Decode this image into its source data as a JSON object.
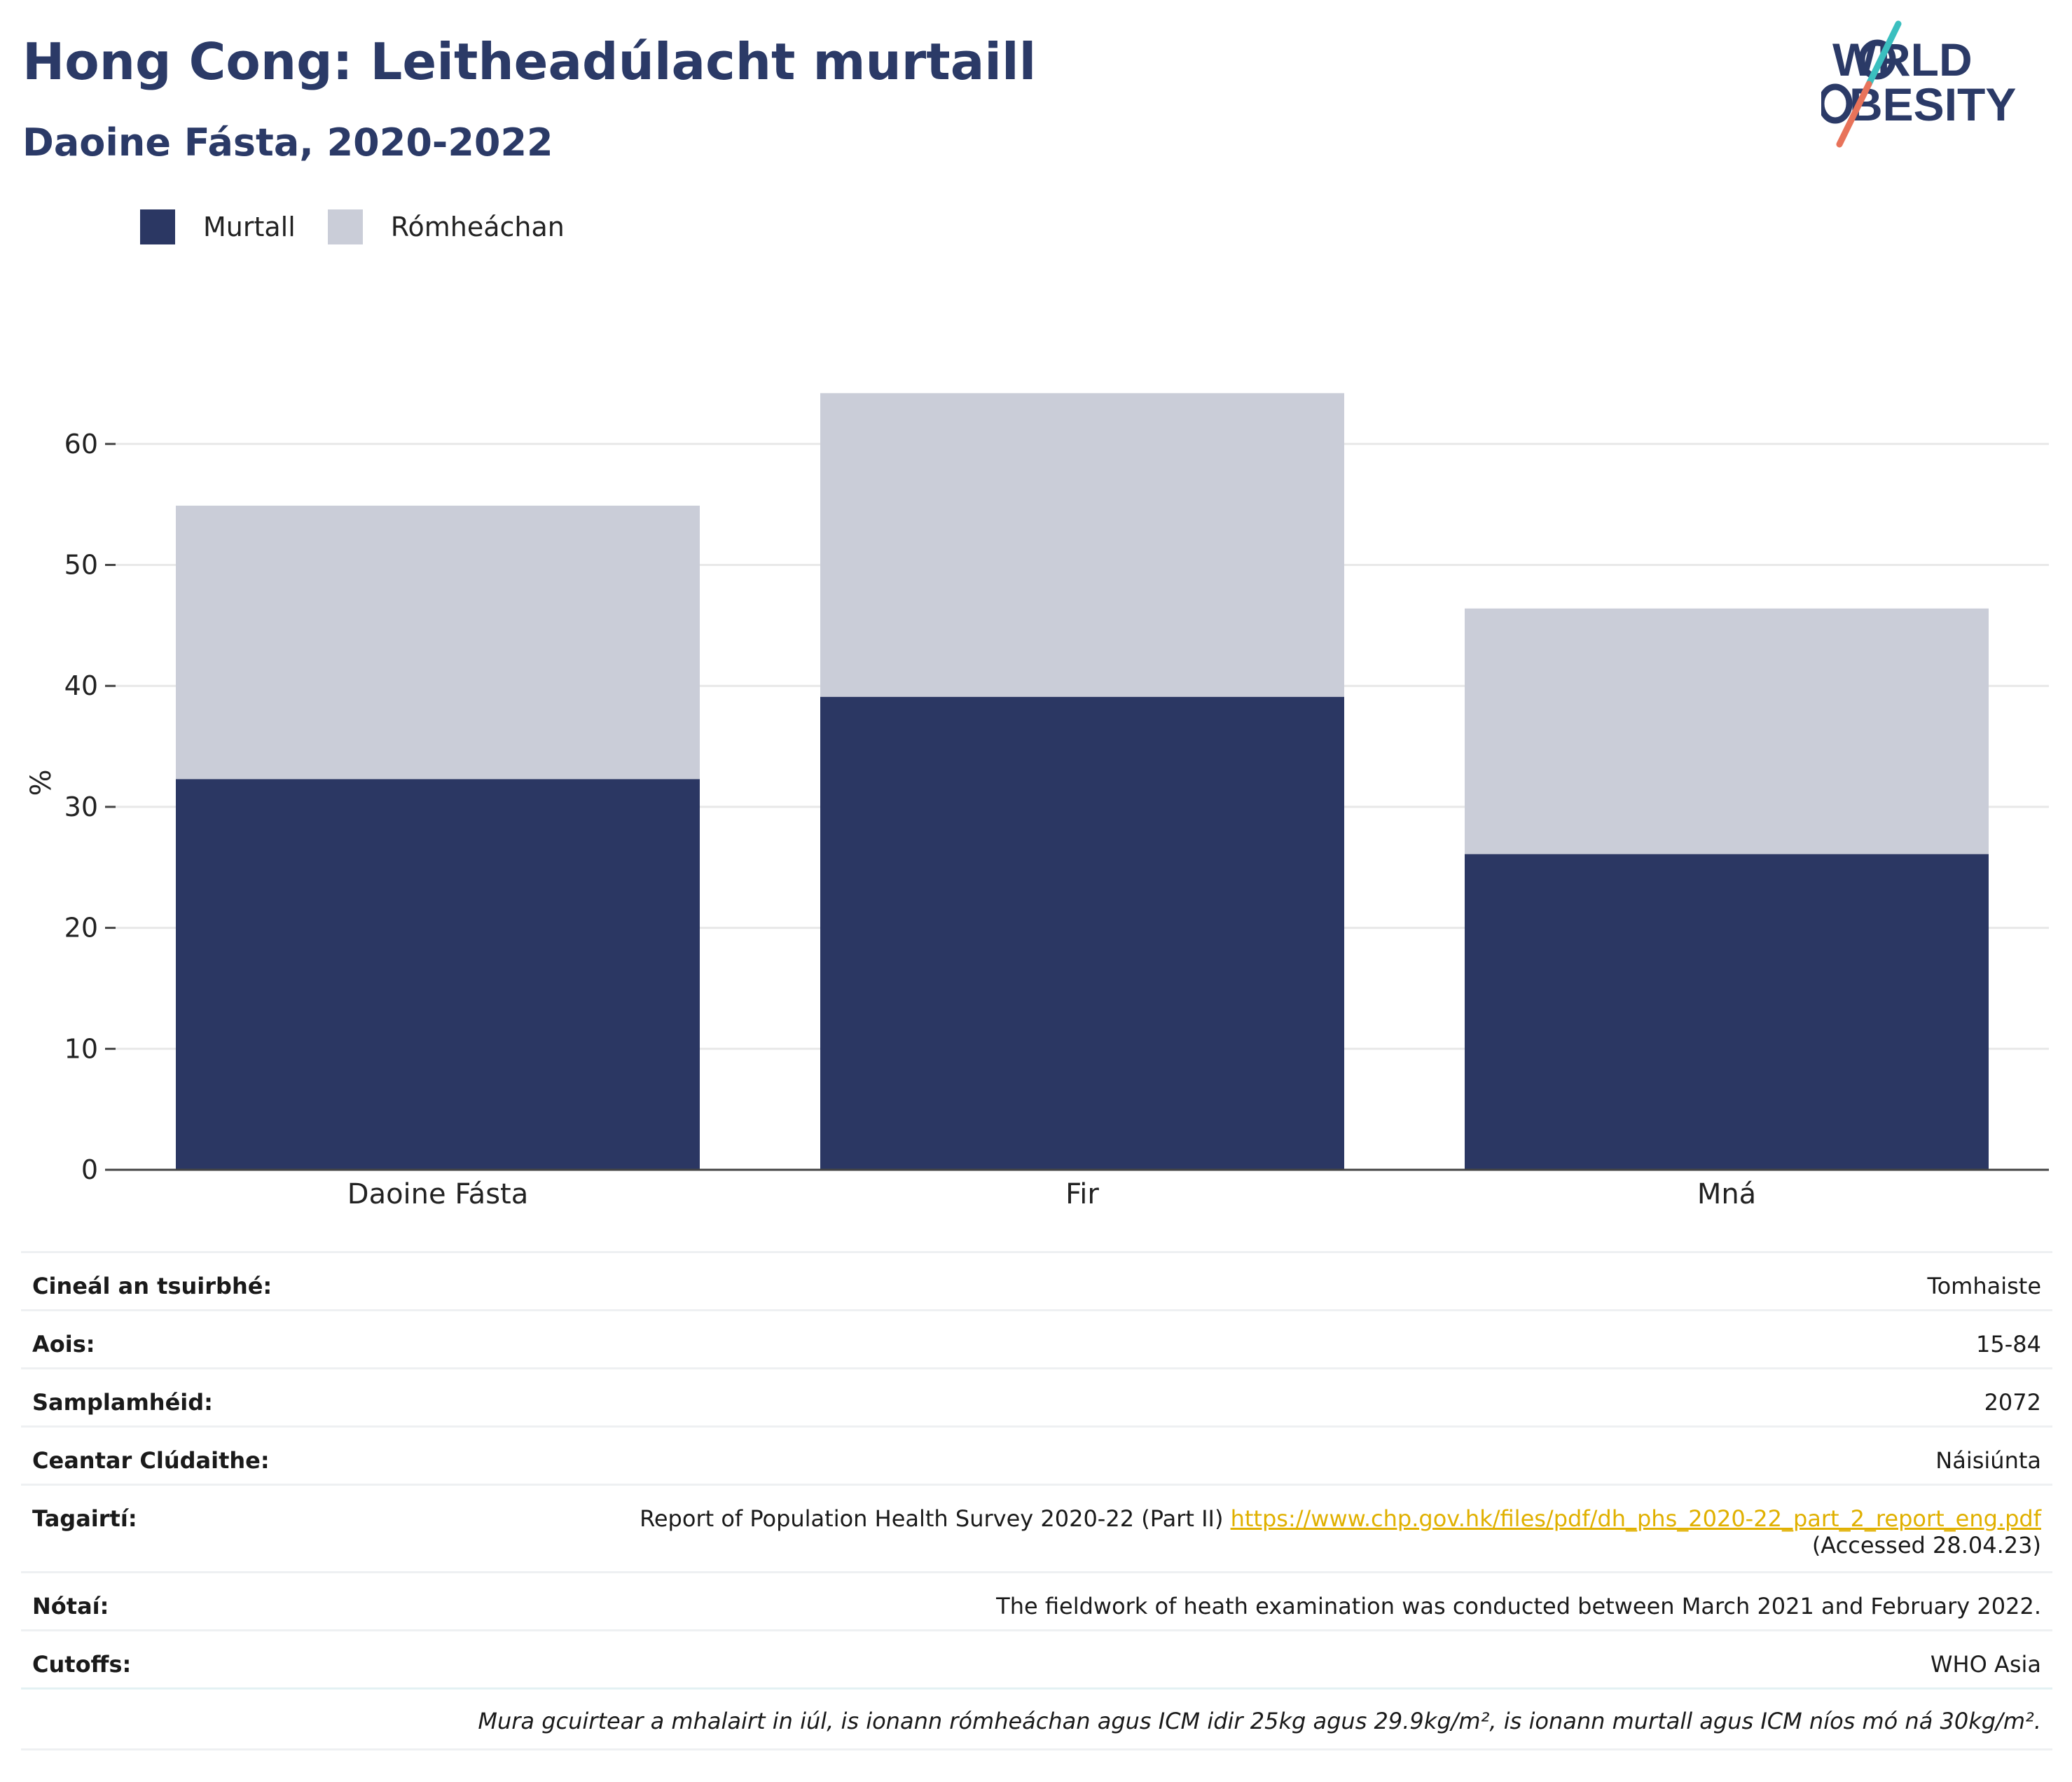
{
  "header": {
    "title": "Hong Cong: Leitheadúlacht murtaill",
    "subtitle": "Daoine Fásta, 2020-2022"
  },
  "logo": {
    "line1": "WORLD",
    "line2": "OBESITY"
  },
  "colors": {
    "obese": "#2b3763",
    "overweight": "#cacdd8",
    "title": "#2b3a67",
    "link": "#e0b000"
  },
  "legend": [
    {
      "label": "Murtall",
      "color": "#2b3763"
    },
    {
      "label": "Rómheáchan",
      "color": "#cacdd8"
    }
  ],
  "chart_data": {
    "type": "bar",
    "stacked": true,
    "categories": [
      "Daoine Fásta",
      "Fir",
      "Mná"
    ],
    "series": [
      {
        "name": "Murtall",
        "values": [
          32.3,
          39.1,
          26.1
        ]
      },
      {
        "name": "Rómheáchan",
        "values": [
          22.6,
          25.1,
          20.3
        ]
      }
    ],
    "ylabel": "%",
    "ylim": [
      0,
      70
    ],
    "yticks": [
      0,
      10,
      20,
      30,
      40,
      50,
      60
    ],
    "grid": true,
    "legend_position": "top-left"
  },
  "info": {
    "survey_type": {
      "label": "Cineál an tsuirbhé:",
      "value": "Tomhaiste"
    },
    "age": {
      "label": "Aois:",
      "value": "15-84"
    },
    "sample_size": {
      "label": "Samplamhéid:",
      "value": "2072"
    },
    "coverage": {
      "label": "Ceantar Clúdaithe:",
      "value": "Náisiúnta"
    },
    "references": {
      "label": "Tagairtí:",
      "text": "Report of Population Health Survey 2020-22 (Part II)",
      "url": "https://www.chp.gov.hk/files/pdf/dh_phs_2020-22_part_2_report_eng.pdf",
      "accessed": "(Accessed 28.04.23)"
    },
    "notes": {
      "label": "Nótaí:",
      "value": "The fieldwork of heath examination was conducted between March 2021 and February 2022."
    },
    "cutoffs": {
      "label": "Cutoffs:",
      "value": "WHO Asia"
    },
    "footnote": "Mura gcuirtear a mhalairt in iúl, is ionann rómheáchan agus ICM idir 25kg agus 29.9kg/m², is ionann murtall agus ICM níos mó ná 30kg/m²."
  }
}
